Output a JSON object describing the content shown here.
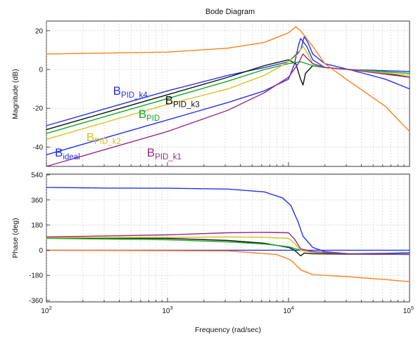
{
  "chart_data": {
    "type": "line",
    "title": "Bode Diagram",
    "xlabel": "Frequency  (rad/sec)",
    "x_scale": "log",
    "xlim": [
      100,
      100000
    ],
    "x_ticks": [
      {
        "value": 100,
        "base": "10",
        "exp": "2"
      },
      {
        "value": 1000,
        "base": "10",
        "exp": "3"
      },
      {
        "value": 10000,
        "base": "10",
        "exp": "4"
      },
      {
        "value": 100000,
        "base": "10",
        "exp": "5"
      }
    ],
    "grid": true,
    "panels": [
      {
        "id": "magnitude",
        "ylabel": "Magnitude (dB)",
        "ylim": [
          -50,
          25
        ],
        "y_ticks": [
          20,
          0,
          -20,
          -40
        ],
        "y_tick_labels": [
          "20",
          "0",
          "-20",
          "-40"
        ]
      },
      {
        "id": "phase",
        "ylabel": "Phase (deg)",
        "ylim": [
          -370,
          545
        ],
        "y_ticks": [
          540,
          360,
          180,
          0,
          -180,
          -360
        ],
        "y_tick_labels": [
          "540",
          "360",
          "180",
          "0",
          "-180",
          "-360"
        ]
      }
    ],
    "series": [
      {
        "name": "B_ideal",
        "label_main": "B",
        "label_sub": "ideal",
        "color": "#2233ee",
        "label_pos": {
          "log10x": 2.07,
          "y": -45
        },
        "magnitude": [
          [
            2.0,
            -44
          ],
          [
            2.5,
            -35
          ],
          [
            3.0,
            -26
          ],
          [
            3.5,
            -17
          ],
          [
            3.8,
            -11
          ],
          [
            4.0,
            -5
          ],
          [
            4.05,
            3
          ],
          [
            4.08,
            12
          ],
          [
            4.1,
            16
          ],
          [
            4.15,
            12
          ],
          [
            4.2,
            5
          ],
          [
            4.3,
            1
          ],
          [
            4.5,
            0
          ],
          [
            5.0,
            -1
          ]
        ],
        "phase": [
          [
            2.0,
            0
          ],
          [
            4.5,
            0
          ],
          [
            4.8,
            0
          ],
          [
            5.0,
            0
          ]
        ]
      },
      {
        "name": "B_PID_k4",
        "label_main": "B",
        "label_sub": "PID_k4",
        "color": "#2233ee",
        "label_pos": {
          "log10x": 2.55,
          "y": -13
        },
        "magnitude": [
          [
            2.0,
            -29
          ],
          [
            2.5,
            -20
          ],
          [
            3.0,
            -11
          ],
          [
            3.5,
            -3
          ],
          [
            3.8,
            1
          ],
          [
            4.0,
            4
          ],
          [
            4.1,
            10
          ],
          [
            4.13,
            17
          ],
          [
            4.16,
            14
          ],
          [
            4.2,
            8
          ],
          [
            4.3,
            3
          ],
          [
            4.5,
            0
          ],
          [
            4.8,
            -5
          ],
          [
            5.0,
            -10
          ]
        ],
        "phase": [
          [
            2.0,
            450
          ],
          [
            2.5,
            445
          ],
          [
            3.0,
            444
          ],
          [
            3.5,
            438
          ],
          [
            3.8,
            418
          ],
          [
            3.95,
            375
          ],
          [
            4.02,
            320
          ],
          [
            4.08,
            200
          ],
          [
            4.12,
            100
          ],
          [
            4.2,
            20
          ],
          [
            4.3,
            -10
          ],
          [
            4.5,
            -25
          ],
          [
            4.8,
            -22
          ],
          [
            5.0,
            -18
          ]
        ]
      },
      {
        "name": "B_PID_k3",
        "label_main": "B",
        "label_sub": "PID_k3",
        "color": "#111111",
        "label_pos": {
          "log10x": 2.98,
          "y": -18
        },
        "magnitude": [
          [
            2.0,
            -31
          ],
          [
            2.5,
            -22
          ],
          [
            3.0,
            -13
          ],
          [
            3.5,
            -4
          ],
          [
            3.8,
            2
          ],
          [
            4.0,
            5
          ],
          [
            4.06,
            3
          ],
          [
            4.1,
            -5
          ],
          [
            4.12,
            -8
          ],
          [
            4.14,
            -2
          ],
          [
            4.2,
            2
          ],
          [
            4.3,
            1
          ],
          [
            4.5,
            0
          ],
          [
            4.8,
            -2
          ],
          [
            5.0,
            -4
          ]
        ],
        "phase": [
          [
            2.0,
            90
          ],
          [
            3.0,
            85
          ],
          [
            3.5,
            70
          ],
          [
            3.8,
            50
          ],
          [
            4.0,
            20
          ],
          [
            4.05,
            0
          ],
          [
            4.1,
            -40
          ],
          [
            4.13,
            -20
          ],
          [
            4.2,
            -25
          ],
          [
            4.5,
            -28
          ],
          [
            5.0,
            -30
          ]
        ]
      },
      {
        "name": "B_PID",
        "label_main": "B",
        "label_sub": "PID",
        "color": "#11aa22",
        "label_pos": {
          "log10x": 2.76,
          "y": -25
        },
        "magnitude": [
          [
            2.0,
            -33
          ],
          [
            2.5,
            -24
          ],
          [
            3.0,
            -15
          ],
          [
            3.5,
            -6
          ],
          [
            3.8,
            0
          ],
          [
            4.0,
            3
          ],
          [
            4.1,
            4
          ],
          [
            4.15,
            3
          ],
          [
            4.2,
            2
          ],
          [
            4.3,
            1
          ],
          [
            4.5,
            0
          ],
          [
            5.0,
            -2
          ]
        ],
        "phase": [
          [
            2.0,
            85
          ],
          [
            3.0,
            75
          ],
          [
            3.5,
            60
          ],
          [
            3.8,
            45
          ],
          [
            4.0,
            25
          ],
          [
            4.1,
            0
          ],
          [
            4.2,
            -15
          ],
          [
            4.5,
            -25
          ],
          [
            5.0,
            -28
          ]
        ]
      },
      {
        "name": "B_PID_k2",
        "label_main": "B",
        "label_sub": "PID_k2",
        "color": "#d4c21e",
        "label_pos": {
          "log10x": 2.33,
          "y": -37
        },
        "magnitude": [
          [
            2.0,
            -36
          ],
          [
            2.5,
            -27
          ],
          [
            3.0,
            -18
          ],
          [
            3.5,
            -10
          ],
          [
            3.8,
            -3
          ],
          [
            4.0,
            4
          ],
          [
            4.08,
            8
          ],
          [
            4.12,
            12
          ],
          [
            4.16,
            8
          ],
          [
            4.2,
            3
          ],
          [
            4.3,
            1
          ],
          [
            4.5,
            0
          ],
          [
            5.0,
            -3
          ]
        ],
        "phase": [
          [
            2.0,
            90
          ],
          [
            3.0,
            92
          ],
          [
            3.5,
            95
          ],
          [
            3.8,
            92
          ],
          [
            4.0,
            85
          ],
          [
            4.05,
            50
          ],
          [
            4.1,
            0
          ],
          [
            4.2,
            -15
          ],
          [
            4.5,
            -25
          ],
          [
            5.0,
            -30
          ]
        ]
      },
      {
        "name": "B_PID_k1",
        "label_main": "B",
        "label_sub": "PID_k1",
        "color": "#9a2a8a",
        "label_pos": {
          "log10x": 2.83,
          "y": -45
        },
        "magnitude": [
          [
            2.0,
            -50
          ],
          [
            2.5,
            -41
          ],
          [
            3.0,
            -32
          ],
          [
            3.5,
            -21
          ],
          [
            3.8,
            -12
          ],
          [
            4.0,
            -4
          ],
          [
            4.08,
            3
          ],
          [
            4.12,
            8
          ],
          [
            4.15,
            6
          ],
          [
            4.2,
            3
          ],
          [
            4.3,
            1
          ],
          [
            4.5,
            0
          ],
          [
            5.0,
            -4
          ]
        ],
        "phase": [
          [
            2.0,
            95
          ],
          [
            3.0,
            110
          ],
          [
            3.5,
            125
          ],
          [
            3.8,
            128
          ],
          [
            4.0,
            125
          ],
          [
            4.05,
            80
          ],
          [
            4.1,
            10
          ],
          [
            4.2,
            -10
          ],
          [
            4.5,
            -25
          ],
          [
            5.0,
            -30
          ]
        ]
      },
      {
        "name": "orange",
        "color": "#ff7f1e",
        "magnitude": [
          [
            2.0,
            8
          ],
          [
            3.0,
            9
          ],
          [
            3.5,
            11
          ],
          [
            3.8,
            14
          ],
          [
            4.0,
            19
          ],
          [
            4.06,
            22
          ],
          [
            4.1,
            20
          ],
          [
            4.2,
            12
          ],
          [
            4.3,
            3
          ],
          [
            4.5,
            -6
          ],
          [
            4.8,
            -19
          ],
          [
            5.0,
            -32
          ]
        ],
        "phase": [
          [
            2.0,
            0
          ],
          [
            3.5,
            -5
          ],
          [
            3.9,
            -30
          ],
          [
            4.02,
            -70
          ],
          [
            4.1,
            -140
          ],
          [
            4.2,
            -175
          ],
          [
            4.5,
            -190
          ],
          [
            4.8,
            -210
          ],
          [
            5.0,
            -225
          ]
        ]
      }
    ]
  }
}
